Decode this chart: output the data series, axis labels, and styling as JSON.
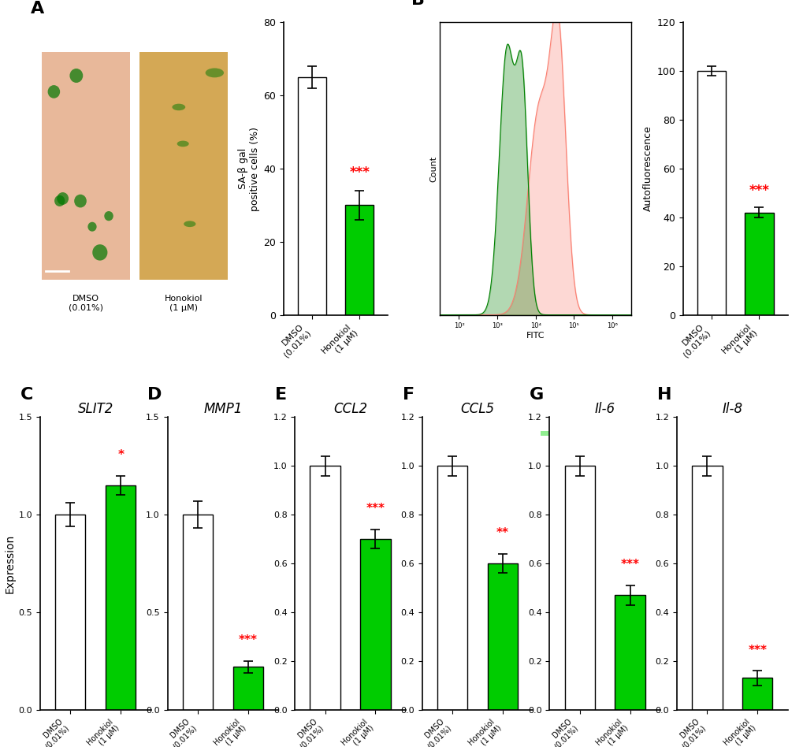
{
  "panel_A_bar": {
    "values": [
      65,
      30
    ],
    "errors": [
      3,
      4
    ],
    "colors": [
      "white",
      "#00CC00"
    ],
    "ylabel": "SA-β gal\npositive cells (%)",
    "ylim": [
      0,
      80
    ],
    "yticks": [
      0,
      20,
      40,
      60,
      80
    ],
    "sig_text": "***",
    "sig_color": "red",
    "categories": [
      "DMSO\n(0.01%)",
      "Honokiol\n(1 μM)"
    ]
  },
  "panel_B_bar": {
    "values": [
      100,
      42
    ],
    "errors": [
      2,
      2
    ],
    "colors": [
      "white",
      "#00CC00"
    ],
    "ylabel": "Autofluorescence",
    "ylim": [
      0,
      120
    ],
    "yticks": [
      0,
      20,
      40,
      60,
      80,
      100,
      120
    ],
    "sig_text": "***",
    "sig_color": "red",
    "categories": [
      "DMSO\n(0.01%)",
      "Honokiol\n(1 μM)"
    ]
  },
  "panel_C": {
    "title": "SLIT2",
    "values": [
      1.0,
      1.15
    ],
    "errors": [
      0.06,
      0.05
    ],
    "colors": [
      "white",
      "#00CC00"
    ],
    "ylabel": "Expression",
    "ylim": [
      0,
      1.5
    ],
    "yticks": [
      0.0,
      0.5,
      1.0,
      1.5
    ],
    "sig_text": "*",
    "sig_color": "red",
    "categories": [
      "DMSO\n(0.01%)",
      "Honokiol\n(1 μM)"
    ]
  },
  "panel_D": {
    "title": "MMP1",
    "values": [
      1.0,
      0.22
    ],
    "errors": [
      0.07,
      0.03
    ],
    "colors": [
      "white",
      "#00CC00"
    ],
    "ylabel": "",
    "ylim": [
      0,
      1.5
    ],
    "yticks": [
      0.0,
      0.5,
      1.0,
      1.5
    ],
    "sig_text": "***",
    "sig_color": "red",
    "categories": [
      "DMSO\n(0.01%)",
      "Honokiol\n(1 μM)"
    ]
  },
  "panel_E": {
    "title": "CCL2",
    "values": [
      1.0,
      0.7
    ],
    "errors": [
      0.04,
      0.04
    ],
    "colors": [
      "white",
      "#00CC00"
    ],
    "ylabel": "",
    "ylim": [
      0,
      1.2
    ],
    "yticks": [
      0.0,
      0.2,
      0.4,
      0.6,
      0.8,
      1.0,
      1.2
    ],
    "sig_text": "***",
    "sig_color": "red",
    "categories": [
      "DMSO\n(0.01%)",
      "Honokiol\n(1 μM)"
    ]
  },
  "panel_F": {
    "title": "CCL5",
    "values": [
      1.0,
      0.6
    ],
    "errors": [
      0.04,
      0.04
    ],
    "colors": [
      "white",
      "#00CC00"
    ],
    "ylabel": "",
    "ylim": [
      0,
      1.2
    ],
    "yticks": [
      0.0,
      0.2,
      0.4,
      0.6,
      0.8,
      1.0,
      1.2
    ],
    "sig_text": "**",
    "sig_color": "red",
    "categories": [
      "DMSO\n(0.01%)",
      "Honokiol\n(1 μM)"
    ]
  },
  "panel_G": {
    "title": "Il-6",
    "values": [
      1.0,
      0.47
    ],
    "errors": [
      0.04,
      0.04
    ],
    "colors": [
      "white",
      "#00CC00"
    ],
    "ylabel": "",
    "ylim": [
      0,
      1.2
    ],
    "yticks": [
      0.0,
      0.2,
      0.4,
      0.6,
      0.8,
      1.0,
      1.2
    ],
    "sig_text": "***",
    "sig_color": "red",
    "categories": [
      "DMSO\n(0.01%)",
      "Honokiol\n(1 μM)"
    ]
  },
  "panel_H": {
    "title": "Il-8",
    "values": [
      1.0,
      0.13
    ],
    "errors": [
      0.04,
      0.03
    ],
    "colors": [
      "white",
      "#00CC00"
    ],
    "ylabel": "",
    "ylim": [
      0,
      1.2
    ],
    "yticks": [
      0.0,
      0.2,
      0.4,
      0.6,
      0.8,
      1.0,
      1.2
    ],
    "sig_text": "***",
    "sig_color": "red",
    "categories": [
      "DMSO\n(0.01%)",
      "Honokiol\n(1 μM)"
    ]
  },
  "background_color": "white",
  "label_fontsize": 16,
  "tick_fontsize": 10,
  "title_fontsize": 12,
  "bar_edgecolor": "black",
  "bar_linewidth": 1.0,
  "error_capsize": 4,
  "error_linewidth": 1.2,
  "axis_linewidth": 1.2
}
